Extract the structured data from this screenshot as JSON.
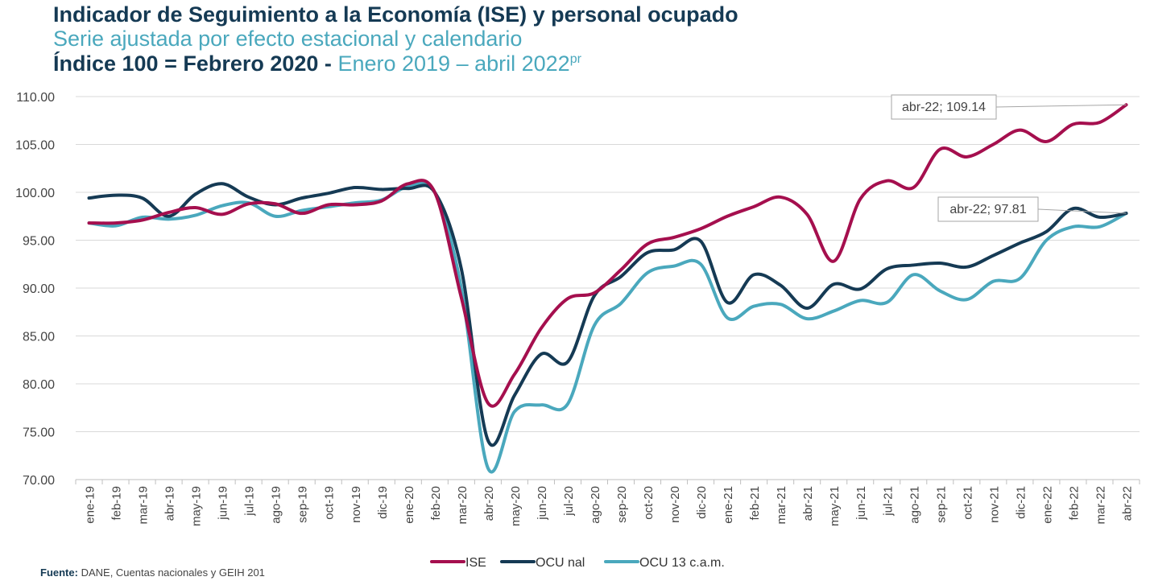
{
  "header": {
    "title": "Indicador de Seguimiento a la Economía (ISE) y personal ocupado",
    "subtitle": "Serie ajustada por efecto estacional y calendario",
    "index_bold": "Índice 100 = Febrero 2020 -",
    "period": "Enero 2019 – abril 2022",
    "period_sup": "pr"
  },
  "source": {
    "label": "Fuente:",
    "text": "DANE, Cuentas nacionales y GEIH 201"
  },
  "chart_data": {
    "type": "line",
    "ylim": [
      70,
      110
    ],
    "yticks": [
      "70.00",
      "75.00",
      "80.00",
      "85.00",
      "90.00",
      "95.00",
      "100.00",
      "105.00",
      "110.00"
    ],
    "grid": "horizontal",
    "legend_position": "bottom",
    "categories": [
      "ene-19",
      "feb-19",
      "mar-19",
      "abr-19",
      "may-19",
      "jun-19",
      "jul-19",
      "ago-19",
      "sep-19",
      "oct-19",
      "nov-19",
      "dic-19",
      "ene-20",
      "feb-20",
      "mar-20",
      "abr-20",
      "may-20",
      "jun-20",
      "jul-20",
      "ago-20",
      "sep-20",
      "oct-20",
      "nov-20",
      "dic-20",
      "ene-21",
      "feb-21",
      "mar-21",
      "abr-21",
      "may-21",
      "jun-21",
      "jul-21",
      "ago-21",
      "sep-21",
      "oct-21",
      "nov-21",
      "dic-21",
      "ene-22",
      "feb-22",
      "mar-22",
      "abr-22"
    ],
    "series": [
      {
        "name": "ISE",
        "color": "#a50f4e",
        "values": [
          96.8,
          96.8,
          97.1,
          97.9,
          98.4,
          97.7,
          98.8,
          98.8,
          97.8,
          98.7,
          98.7,
          99.1,
          100.9,
          100.0,
          89.0,
          78.0,
          81.0,
          85.8,
          88.9,
          89.5,
          91.9,
          94.6,
          95.3,
          96.2,
          97.5,
          98.5,
          99.5,
          97.7,
          92.8,
          99.3,
          101.2,
          100.5,
          104.5,
          103.7,
          105.0,
          106.5,
          105.3,
          107.1,
          107.3,
          109.14
        ]
      },
      {
        "name": "OCU nal",
        "color": "#153a54",
        "values": [
          99.4,
          99.7,
          99.4,
          97.5,
          99.8,
          100.9,
          99.5,
          98.7,
          99.4,
          99.9,
          100.5,
          100.3,
          100.4,
          100.0,
          92.0,
          74.1,
          78.8,
          83.1,
          82.3,
          89.2,
          91.2,
          93.7,
          94.0,
          94.9,
          88.5,
          91.4,
          90.3,
          87.9,
          90.4,
          89.9,
          92.0,
          92.4,
          92.6,
          92.2,
          93.4,
          94.7,
          95.9,
          98.3,
          97.4,
          97.81
        ]
      },
      {
        "name": "OCU 13 c.a.m.",
        "color": "#4aa8bd",
        "values": [
          96.8,
          96.5,
          97.4,
          97.2,
          97.6,
          98.6,
          98.9,
          97.5,
          98.1,
          98.5,
          98.9,
          99.2,
          100.6,
          100.0,
          90.0,
          71.2,
          77.1,
          77.8,
          77.9,
          86.1,
          88.4,
          91.6,
          92.3,
          92.5,
          86.9,
          88.1,
          88.3,
          86.8,
          87.6,
          88.7,
          88.5,
          91.4,
          89.7,
          88.8,
          90.7,
          91.0,
          95.0,
          96.4,
          96.4,
          97.81
        ]
      }
    ],
    "annotations": [
      {
        "series": 0,
        "index": 39,
        "text": "abr-22;  109.14"
      },
      {
        "series": 1,
        "index": 39,
        "text": "abr-22;  97.81"
      }
    ]
  }
}
